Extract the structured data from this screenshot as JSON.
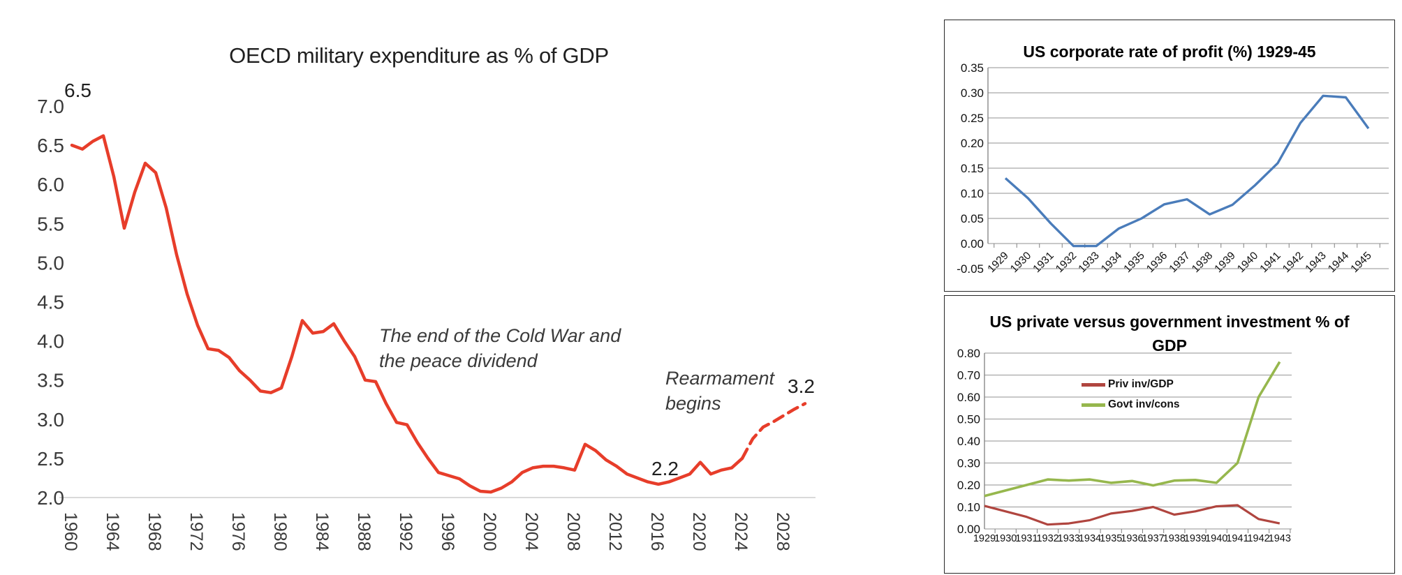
{
  "page": {
    "background": "#ffffff"
  },
  "chart_data": [
    {
      "id": "oecd-military-expenditure",
      "type": "line",
      "title": "OECD military expenditure as % of GDP",
      "x_start_year": 1960,
      "x_end_year": 2030,
      "forecast_from_year": 2024,
      "values": [
        6.5,
        6.45,
        6.55,
        6.62,
        6.1,
        5.44,
        5.9,
        6.27,
        6.15,
        5.7,
        5.1,
        4.6,
        4.2,
        3.9,
        3.88,
        3.79,
        3.62,
        3.5,
        3.36,
        3.34,
        3.4,
        3.8,
        4.26,
        4.1,
        4.12,
        4.22,
        4.0,
        3.8,
        3.5,
        3.48,
        3.2,
        2.96,
        2.93,
        2.7,
        2.5,
        2.32,
        2.28,
        2.24,
        2.15,
        2.08,
        2.07,
        2.12,
        2.2,
        2.32,
        2.38,
        2.4,
        2.4,
        2.38,
        2.35,
        2.68,
        2.6,
        2.48,
        2.4,
        2.3,
        2.25,
        2.2,
        2.17,
        2.2,
        2.25,
        2.3,
        2.45,
        2.3,
        2.35,
        2.38,
        2.5,
        2.75,
        2.9,
        2.97,
        3.05,
        3.13,
        3.2
      ],
      "ylim": [
        2.0,
        7.0
      ],
      "y_tick_labels": [
        "7.0",
        "6.5",
        "6.0",
        "5.5",
        "5.0",
        "4.5",
        "4.0",
        "3.5",
        "3.0",
        "2.5",
        "2.0"
      ],
      "x_tick_labels": [
        "1960",
        "1964",
        "1968",
        "1972",
        "1976",
        "1980",
        "1984",
        "1988",
        "1992",
        "1996",
        "2000",
        "2004",
        "2008",
        "2012",
        "2016",
        "2020",
        "2024",
        "2028"
      ],
      "line_color": "#e73d2a",
      "grid": "baseline-only",
      "annotations": [
        {
          "lines": [
            "The end of the Cold War and",
            "the peace dividend"
          ]
        },
        {
          "lines": [
            "Rearmament",
            "begins"
          ]
        }
      ],
      "point_labels": [
        {
          "text": "6.5",
          "year": 1960
        },
        {
          "text": "2.2",
          "year": 2016
        },
        {
          "text": "3.2",
          "year": 2030
        }
      ]
    },
    {
      "id": "us-corporate-rate-of-profit",
      "type": "line",
      "title": "US corporate rate of profit (%) 1929-45",
      "categories": [
        "1929",
        "1930",
        "1931",
        "1932",
        "1933",
        "1934",
        "1935",
        "1936",
        "1937",
        "1938",
        "1939",
        "1940",
        "1941",
        "1942",
        "1943",
        "1944",
        "1945"
      ],
      "values": [
        0.13,
        0.09,
        0.04,
        -0.005,
        -0.005,
        0.03,
        0.05,
        0.078,
        0.088,
        0.058,
        0.077,
        0.116,
        0.16,
        0.24,
        0.294,
        0.291,
        0.229
      ],
      "ylim": [
        -0.05,
        0.35
      ],
      "y_tick_labels": [
        "0.35",
        "0.30",
        "0.25",
        "0.20",
        "0.15",
        "0.10",
        "0.05",
        "0.00",
        "-0.05"
      ],
      "line_color": "#4a7cba",
      "grid": true,
      "legend_position": "none"
    },
    {
      "id": "us-private-vs-government-investment",
      "type": "line",
      "title_lines": [
        "US private versus government investment % of",
        "GDP"
      ],
      "categories": [
        "1929",
        "1930",
        "1931",
        "1932",
        "1933",
        "1934",
        "1935",
        "1936",
        "1937",
        "1938",
        "1939",
        "1940",
        "1941",
        "1942",
        "1943"
      ],
      "series": [
        {
          "name": "Priv inv/GDP",
          "color": "#b0453f",
          "values": [
            0.105,
            0.08,
            0.055,
            0.02,
            0.025,
            0.04,
            0.07,
            0.082,
            0.1,
            0.065,
            0.08,
            0.103,
            0.108,
            0.045,
            0.025
          ]
        },
        {
          "name": "Govt inv/cons",
          "color": "#96b74d",
          "values": [
            0.15,
            0.175,
            0.2,
            0.225,
            0.22,
            0.225,
            0.21,
            0.218,
            0.198,
            0.22,
            0.223,
            0.21,
            0.3,
            0.6,
            0.76
          ]
        }
      ],
      "ylim": [
        0.0,
        0.8
      ],
      "y_tick_labels": [
        "0.80",
        "0.70",
        "0.60",
        "0.50",
        "0.40",
        "0.30",
        "0.20",
        "0.10",
        "0.00"
      ],
      "grid": true,
      "legend_position": "inside-top-center"
    }
  ]
}
